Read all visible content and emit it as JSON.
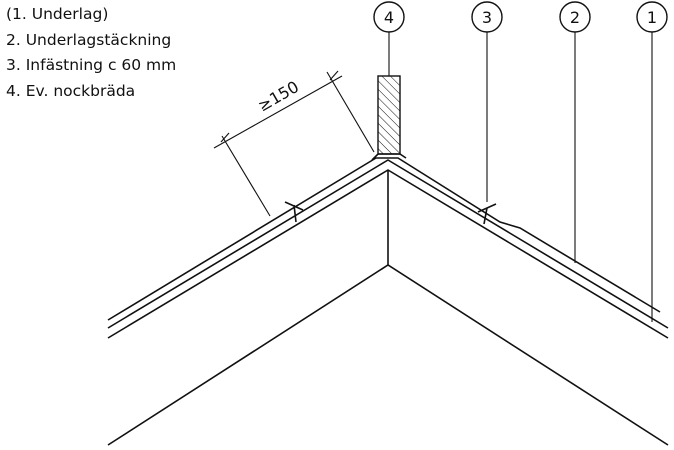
{
  "legend": {
    "items": [
      "(1. Underlag)",
      "2. Underlagstäckning",
      "3. Infästning c 60 mm",
      "4. Ev. nockbräda"
    ]
  },
  "callouts": [
    "4",
    "3",
    "2",
    "1"
  ],
  "dimension": {
    "label": "≥150"
  }
}
